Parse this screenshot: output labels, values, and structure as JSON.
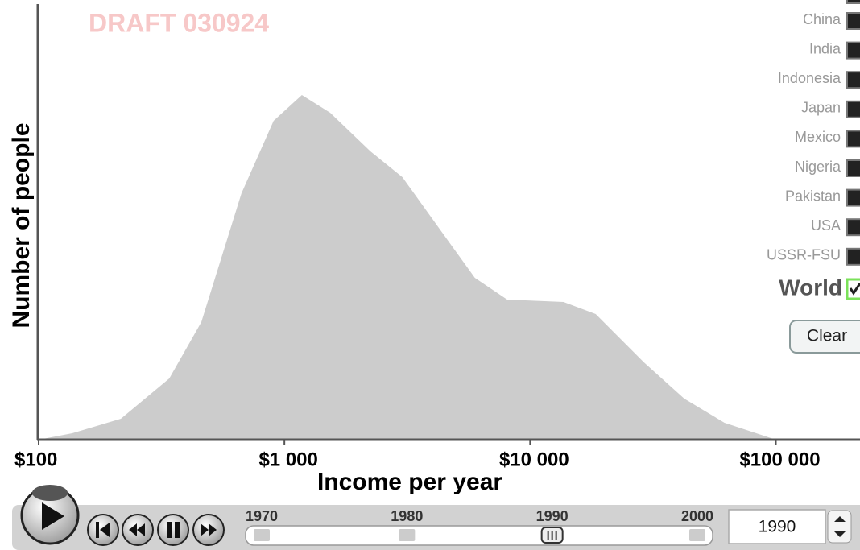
{
  "chart_data": {
    "type": "area",
    "annotation": "DRAFT 030924",
    "x_label": "Income per year",
    "y_label": "Number of people",
    "log_x": true,
    "color": "#cccccc",
    "x": [
      100,
      137,
      216,
      340,
      459,
      669,
      904,
      1178,
      1535,
      2240,
      3020,
      4415,
      5960,
      8060,
      13670,
      18490,
      29060,
      42370,
      61800,
      100000
    ],
    "values": [
      0,
      1.6,
      5.2,
      15.2,
      29.2,
      61.2,
      79.2,
      85.6,
      81.2,
      71.6,
      65.2,
      51.2,
      40.2,
      34.8,
      34.2,
      31.2,
      19.2,
      10.2,
      4.2,
      0
    ],
    "xlim": [
      100,
      220000
    ],
    "ylim": [
      0,
      100
    ],
    "xticks": [
      {
        "value": 100,
        "label": "$100"
      },
      {
        "value": 1000,
        "label": "$1 000"
      },
      {
        "value": 10000,
        "label": "$10 000"
      },
      {
        "value": 100000,
        "label": "$100 000"
      }
    ]
  },
  "legend": {
    "countries": [
      "China",
      "India",
      "Indonesia",
      "Japan",
      "Mexico",
      "Nigeria",
      "Pakistan",
      "USA",
      "USSR-FSU"
    ],
    "world": "World",
    "clear": "Clear"
  },
  "controls": {
    "timeline_ticks": [
      1970,
      1980,
      1990,
      2000
    ],
    "year": 1990
  }
}
